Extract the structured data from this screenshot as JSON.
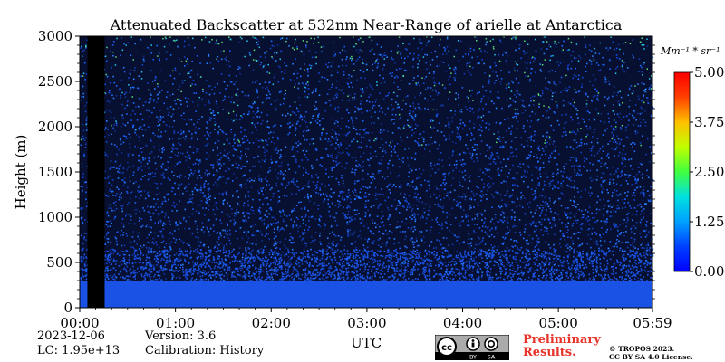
{
  "chart_data": {
    "type": "heatmap",
    "title": "Attenuated Backscatter at 532nm Near-Range of arielle at Antarctica",
    "xlabel": "UTC",
    "ylabel": "Height (m)",
    "x_ticks": [
      "00:00",
      "01:00",
      "02:00",
      "03:00",
      "04:00",
      "05:00",
      "05:59"
    ],
    "x_range_hours": [
      0,
      5.983
    ],
    "y_ticks": [
      0,
      500,
      1000,
      1500,
      2000,
      2500,
      3000
    ],
    "ylim": [
      0,
      3000
    ],
    "colorbar": {
      "unit_label": "Mm⁻¹ * sr⁻¹",
      "ticks": [
        "0.00",
        "1.25",
        "2.50",
        "3.75",
        "5.00"
      ],
      "range": [
        0,
        5.0
      ],
      "colormap": "jet"
    },
    "no_data_interval_hours": [
      0.08,
      0.26
    ],
    "background_value": 1.0,
    "surface_layer_top_m": 300,
    "surface_layer_value": 0.3
  },
  "meta": {
    "date": "2023-12-06",
    "lc": "LC: 1.95e+13",
    "version": "Version: 3.6",
    "calibration": "Calibration: History"
  },
  "footer": {
    "preliminary_line1": "Preliminary",
    "preliminary_line2": "Results.",
    "copyright_line1": "© TROPOS 2023.",
    "copyright_line2": "CC BY SA 4.0 License.",
    "cc_labels": [
      "BY",
      "SA"
    ]
  }
}
